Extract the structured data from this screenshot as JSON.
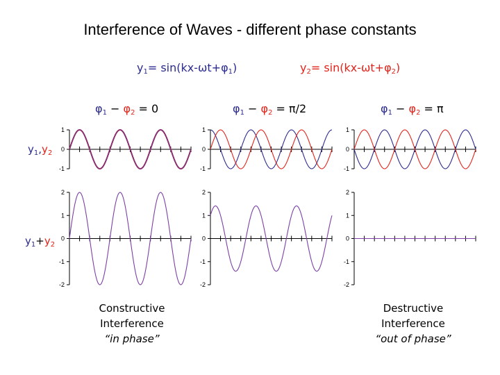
{
  "title": "Interference of Waves - different phase constants",
  "eq1": {
    "y": "y",
    "sub": "1",
    "rest": "= sin(kx-ωt+φ",
    "sub2": "1",
    "close": ")"
  },
  "eq2": {
    "y": "y",
    "sub": "2",
    "rest": "= sin(kx-ωt+φ",
    "sub2": "2",
    "close": ")"
  },
  "phase_labels": [
    {
      "phi": "φ",
      "one": "1",
      "minus": " − ",
      "two": "2",
      "eq": " = ",
      "value": "0"
    },
    {
      "phi": "φ",
      "one": "1",
      "minus": " − ",
      "two": "2",
      "eq": " = ",
      "value": "π/2"
    },
    {
      "phi": "φ",
      "one": "1",
      "minus": " − ",
      "two": "2",
      "eq": " = ",
      "value": "π"
    }
  ],
  "row_labels": {
    "top": {
      "y1": "y",
      "s1": "1",
      "sep": ",",
      "y2": "y",
      "s2": "2"
    },
    "bottom": {
      "y1": "y",
      "s1": "1",
      "sep": "+",
      "y2": "y",
      "s2": "2"
    }
  },
  "captions": {
    "constructive": {
      "line1": "Constructive",
      "line2": "Interference",
      "line3": "“in phase”"
    },
    "destructive": {
      "line1": "Destructive",
      "line2": "Interference",
      "line3": "“out of phase”"
    }
  },
  "colors": {
    "y1": "#2b2a8f",
    "y2": "#e2231a",
    "sum": "#7b3fa6",
    "combined": "#8b2c6e",
    "axis": "#000000"
  },
  "chart_data": [
    {
      "type": "line",
      "panel": "top-1",
      "ylim": [
        -1,
        1
      ],
      "yticks": [
        "1",
        "0",
        "-1"
      ],
      "phase_difference": "0",
      "series": [
        {
          "color_key": "y1",
          "amplitude": 1,
          "phase_deg": 0
        },
        {
          "color_key": "y2",
          "amplitude": 1,
          "phase_deg": 0
        }
      ]
    },
    {
      "type": "line",
      "panel": "top-2",
      "ylim": [
        -1,
        1
      ],
      "yticks": [
        "1",
        "0",
        "-1"
      ],
      "phase_difference": "π/2",
      "series": [
        {
          "color_key": "y1",
          "amplitude": 1,
          "phase_deg": 90
        },
        {
          "color_key": "y2",
          "amplitude": 1,
          "phase_deg": 0
        }
      ]
    },
    {
      "type": "line",
      "panel": "top-3",
      "ylim": [
        -1,
        1
      ],
      "yticks": [
        "1",
        "0",
        "-1"
      ],
      "phase_difference": "π",
      "series": [
        {
          "color_key": "y1",
          "amplitude": 1,
          "phase_deg": 180
        },
        {
          "color_key": "y2",
          "amplitude": 1,
          "phase_deg": 0
        }
      ]
    },
    {
      "type": "line",
      "panel": "bottom-1",
      "ylim": [
        -2,
        2
      ],
      "yticks": [
        "2",
        "1",
        "0",
        "-1",
        "-2"
      ],
      "series": [
        {
          "color_key": "sum",
          "amplitude": 2,
          "phase_deg": 0
        }
      ]
    },
    {
      "type": "line",
      "panel": "bottom-2",
      "ylim": [
        -2,
        2
      ],
      "yticks": [
        "2",
        "1",
        "0",
        "-1",
        "-2"
      ],
      "series": [
        {
          "color_key": "sum",
          "amplitude": 1.414,
          "phase_deg": 45
        }
      ]
    },
    {
      "type": "line",
      "panel": "bottom-3",
      "ylim": [
        -2,
        2
      ],
      "yticks": [
        "2",
        "1",
        "0",
        "-1",
        "-2"
      ],
      "series": [
        {
          "color_key": "sum",
          "amplitude": 0,
          "phase_deg": 0
        }
      ]
    }
  ]
}
